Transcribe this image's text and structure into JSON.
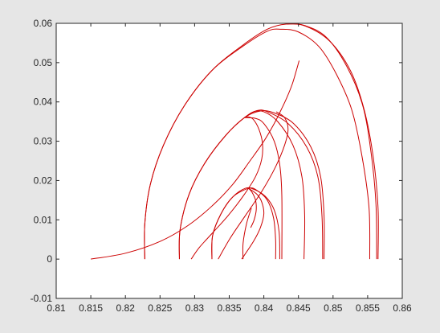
{
  "chart_data": {
    "type": "line",
    "title": "",
    "xlabel": "",
    "ylabel": "",
    "xlim": [
      0.81,
      0.86
    ],
    "ylim": [
      -0.01,
      0.06
    ],
    "grid": false,
    "legend": "none",
    "colors": {
      "line": "#cc0000",
      "axes": "#262626",
      "plot_bg": "#ffffff",
      "figure_bg": "#e6e6e6"
    },
    "x_ticks": [
      {
        "value": 0.81,
        "label": "0.81"
      },
      {
        "value": 0.815,
        "label": "0.815"
      },
      {
        "value": 0.82,
        "label": "0.82"
      },
      {
        "value": 0.825,
        "label": "0.825"
      },
      {
        "value": 0.83,
        "label": "0.83"
      },
      {
        "value": 0.835,
        "label": "0.835"
      },
      {
        "value": 0.84,
        "label": "0.84"
      },
      {
        "value": 0.845,
        "label": "0.845"
      },
      {
        "value": 0.85,
        "label": "0.85"
      },
      {
        "value": 0.855,
        "label": "0.855"
      },
      {
        "value": 0.86,
        "label": "0.86"
      }
    ],
    "y_ticks": [
      {
        "value": -0.01,
        "label": "-0.01"
      },
      {
        "value": 0,
        "label": "0"
      },
      {
        "value": 0.01,
        "label": "0.01"
      },
      {
        "value": 0.02,
        "label": "0.02"
      },
      {
        "value": 0.03,
        "label": "0.03"
      },
      {
        "value": 0.04,
        "label": "0.04"
      },
      {
        "value": 0.05,
        "label": "0.05"
      },
      {
        "value": 0.06,
        "label": "0.06"
      }
    ],
    "series": [
      {
        "points": [
          [
            0.815,
            0.0
          ],
          [
            0.82,
            0.0015
          ],
          [
            0.825,
            0.0045
          ],
          [
            0.829,
            0.0085
          ],
          [
            0.8325,
            0.0135
          ],
          [
            0.8355,
            0.019
          ],
          [
            0.838,
            0.025
          ],
          [
            0.84,
            0.03
          ],
          [
            0.8415,
            0.0345
          ],
          [
            0.8425,
            0.038
          ],
          [
            0.8433,
            0.041
          ],
          [
            0.8441,
            0.0445
          ],
          [
            0.8447,
            0.048
          ],
          [
            0.8451,
            0.0505
          ]
        ]
      },
      {
        "points": [
          [
            0.8228,
            0.0
          ],
          [
            0.8228,
            0.009
          ],
          [
            0.8236,
            0.019
          ],
          [
            0.8255,
            0.029
          ],
          [
            0.8285,
            0.039
          ],
          [
            0.8325,
            0.048
          ],
          [
            0.837,
            0.0545
          ],
          [
            0.8405,
            0.0585
          ],
          [
            0.8432,
            0.0598
          ],
          [
            0.846,
            0.0593
          ],
          [
            0.8495,
            0.0555
          ],
          [
            0.8525,
            0.048
          ],
          [
            0.8545,
            0.038
          ],
          [
            0.8558,
            0.026
          ],
          [
            0.8565,
            0.013
          ],
          [
            0.8565,
            0.0
          ]
        ]
      },
      {
        "points": [
          [
            0.8228,
            0.0
          ],
          [
            0.8228,
            0.009
          ],
          [
            0.8236,
            0.019
          ],
          [
            0.8255,
            0.029
          ],
          [
            0.8285,
            0.039
          ],
          [
            0.8325,
            0.048
          ],
          [
            0.837,
            0.0542
          ],
          [
            0.8405,
            0.058
          ],
          [
            0.8425,
            0.0585
          ],
          [
            0.845,
            0.0578
          ],
          [
            0.848,
            0.054
          ],
          [
            0.8505,
            0.047
          ],
          [
            0.8527,
            0.038
          ],
          [
            0.8542,
            0.026
          ],
          [
            0.8552,
            0.013
          ],
          [
            0.8553,
            0.0
          ]
        ]
      },
      {
        "points": [
          [
            0.8433,
            0.0598
          ],
          [
            0.8458,
            0.0595
          ],
          [
            0.849,
            0.0565
          ],
          [
            0.852,
            0.049
          ],
          [
            0.8543,
            0.039
          ],
          [
            0.8555,
            0.027
          ],
          [
            0.8562,
            0.014
          ],
          [
            0.8563,
            0.0
          ]
        ]
      },
      {
        "points": [
          [
            0.8278,
            0.0
          ],
          [
            0.8279,
            0.0075
          ],
          [
            0.8292,
            0.0165
          ],
          [
            0.8315,
            0.0245
          ],
          [
            0.8345,
            0.0315
          ],
          [
            0.8372,
            0.036
          ],
          [
            0.8395,
            0.0377
          ],
          [
            0.8415,
            0.0372
          ],
          [
            0.8443,
            0.0345
          ],
          [
            0.8468,
            0.0285
          ],
          [
            0.8482,
            0.021
          ],
          [
            0.8487,
            0.011
          ],
          [
            0.8487,
            0.0
          ]
        ]
      },
      {
        "points": [
          [
            0.8278,
            0.0
          ],
          [
            0.8279,
            0.0075
          ],
          [
            0.8292,
            0.0165
          ],
          [
            0.8315,
            0.0245
          ],
          [
            0.8345,
            0.0315
          ],
          [
            0.8372,
            0.036
          ],
          [
            0.839,
            0.0378
          ],
          [
            0.8405,
            0.0375
          ],
          [
            0.8435,
            0.0345
          ],
          [
            0.8462,
            0.0285
          ],
          [
            0.8478,
            0.021
          ],
          [
            0.8484,
            0.011
          ],
          [
            0.8485,
            0.0
          ]
        ]
      },
      {
        "points": [
          [
            0.8372,
            0.036
          ],
          [
            0.8385,
            0.0375
          ],
          [
            0.84,
            0.0375
          ],
          [
            0.842,
            0.035
          ],
          [
            0.8442,
            0.029
          ],
          [
            0.8455,
            0.021
          ],
          [
            0.8459,
            0.011
          ],
          [
            0.8458,
            0.0
          ]
        ]
      },
      {
        "points": [
          [
            0.8372,
            0.036
          ],
          [
            0.8388,
            0.0358
          ],
          [
            0.84,
            0.0345
          ],
          [
            0.8415,
            0.03
          ],
          [
            0.8423,
            0.024
          ],
          [
            0.8426,
            0.016
          ],
          [
            0.8426,
            0.0
          ]
        ]
      },
      {
        "points": [
          [
            0.8334,
            0.0
          ],
          [
            0.8352,
            0.0055
          ],
          [
            0.8375,
            0.0115
          ],
          [
            0.8398,
            0.0175
          ],
          [
            0.8417,
            0.0235
          ],
          [
            0.843,
            0.029
          ],
          [
            0.8435,
            0.033
          ],
          [
            0.843,
            0.036
          ],
          [
            0.8418,
            0.0375
          ]
        ]
      },
      {
        "points": [
          [
            0.8372,
            0.036
          ],
          [
            0.8378,
            0.0362
          ],
          [
            0.8385,
            0.0355
          ],
          [
            0.8393,
            0.033
          ],
          [
            0.8398,
            0.0295
          ],
          [
            0.8397,
            0.0255
          ],
          [
            0.8388,
            0.021
          ],
          [
            0.837,
            0.016
          ],
          [
            0.8348,
            0.011
          ],
          [
            0.8325,
            0.0065
          ],
          [
            0.8307,
            0.003
          ],
          [
            0.8295,
            0.0
          ]
        ]
      },
      {
        "points": [
          [
            0.8325,
            0.0
          ],
          [
            0.8326,
            0.006
          ],
          [
            0.8338,
            0.0115
          ],
          [
            0.8355,
            0.0158
          ],
          [
            0.8373,
            0.018
          ],
          [
            0.8385,
            0.0178
          ],
          [
            0.8402,
            0.016
          ],
          [
            0.8415,
            0.0125
          ],
          [
            0.8422,
            0.007
          ],
          [
            0.8423,
            0.0
          ]
        ]
      },
      {
        "points": [
          [
            0.8325,
            0.0
          ],
          [
            0.8326,
            0.006
          ],
          [
            0.8338,
            0.0115
          ],
          [
            0.8355,
            0.0158
          ],
          [
            0.8378,
            0.018
          ],
          [
            0.839,
            0.0175
          ],
          [
            0.8405,
            0.015
          ],
          [
            0.8414,
            0.0105
          ],
          [
            0.8417,
            0.005
          ],
          [
            0.8417,
            0.0
          ]
        ]
      },
      {
        "points": [
          [
            0.8368,
            0.0
          ],
          [
            0.8385,
            0.0045
          ],
          [
            0.8395,
            0.008
          ],
          [
            0.84,
            0.0115
          ],
          [
            0.8397,
            0.0145
          ],
          [
            0.839,
            0.0165
          ],
          [
            0.8378,
            0.018
          ]
        ]
      },
      {
        "points": [
          [
            0.8378,
            0.018
          ],
          [
            0.8383,
            0.017
          ],
          [
            0.8388,
            0.015
          ],
          [
            0.8389,
            0.0125
          ],
          [
            0.8386,
            0.01
          ],
          [
            0.8381,
            0.008
          ]
        ]
      },
      {
        "points": [
          [
            0.837,
            0.0
          ],
          [
            0.837,
            0.004
          ],
          [
            0.8375,
            0.009
          ],
          [
            0.8382,
            0.013
          ]
        ]
      }
    ]
  }
}
